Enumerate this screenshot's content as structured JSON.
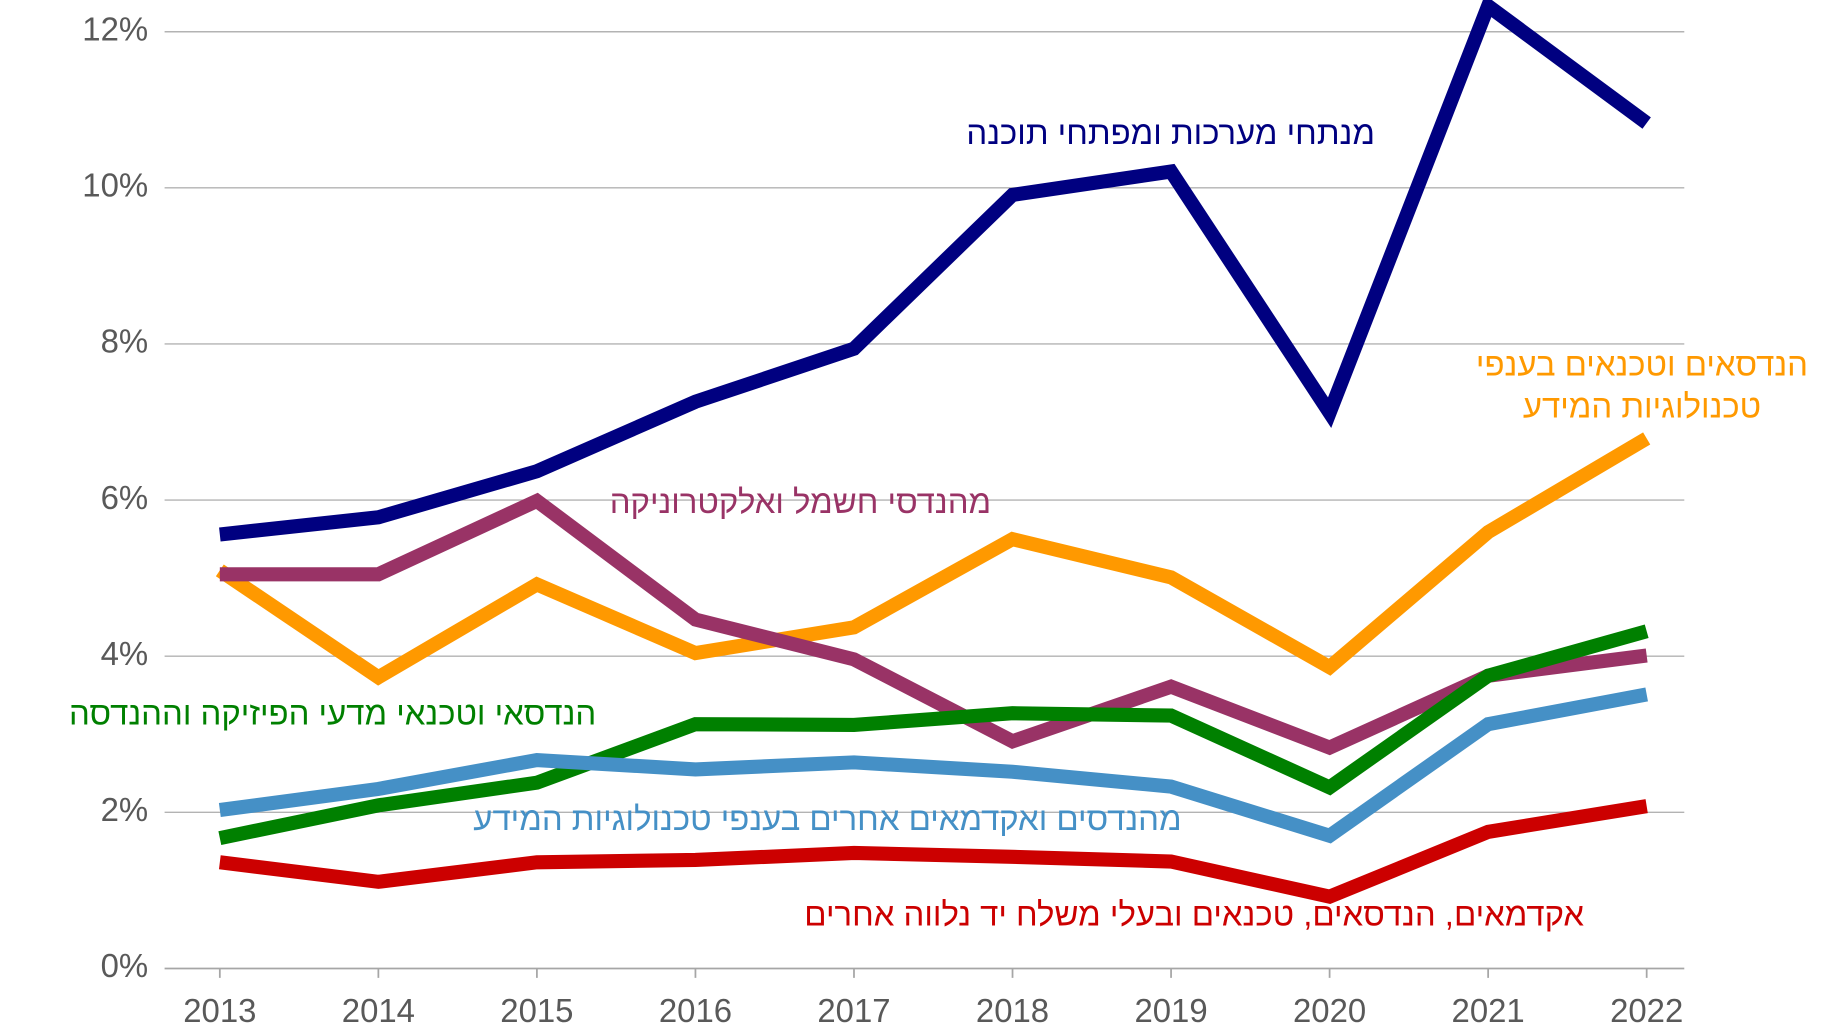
{
  "chart_data": {
    "type": "line",
    "x": [
      2013,
      2014,
      2015,
      2016,
      2017,
      2018,
      2019,
      2020,
      2021,
      2022
    ],
    "xlim": [
      2013,
      2022
    ],
    "ylim": [
      0,
      12
    ],
    "yticks": [
      {
        "value": 0,
        "label": "0%"
      },
      {
        "value": 2,
        "label": "2%"
      },
      {
        "value": 4,
        "label": "4%"
      },
      {
        "value": 6,
        "label": "6%"
      },
      {
        "value": 8,
        "label": "8%"
      },
      {
        "value": 10,
        "label": "10%"
      },
      {
        "value": 12,
        "label": "12%"
      }
    ],
    "grid": true,
    "series": [
      {
        "name": "מנתחי מערכות ומפתחי תוכנה",
        "color": "#000080",
        "values": [
          5.56,
          5.78,
          6.37,
          7.26,
          7.94,
          9.91,
          10.21,
          7.12,
          12.33,
          10.83
        ]
      },
      {
        "name": [
          "הנדסאים וטכנאים בענפי",
          "טכנולוגיות המידע"
        ],
        "color": "#ff9900",
        "values": [
          5.1,
          3.73,
          4.92,
          4.04,
          4.37,
          5.5,
          5.01,
          3.86,
          5.59,
          6.79
        ]
      },
      {
        "name": "מהנדסי חשמל ואלקטרוניקה",
        "color": "#993366",
        "values": [
          5.05,
          5.05,
          5.99,
          4.47,
          3.96,
          2.91,
          3.61,
          2.83,
          3.75,
          4.01
        ]
      },
      {
        "name": "הנדסאי וטכנאי מדעי הפיזיקה וההנדסה",
        "color": "#008000",
        "values": [
          1.67,
          2.09,
          2.38,
          3.13,
          3.12,
          3.27,
          3.24,
          2.32,
          3.75,
          4.32
        ]
      },
      {
        "name": "מהנדסים ואקדמאים אחרים בענפי טכנולוגיות המידע",
        "color": "#4590c6",
        "values": [
          2.03,
          2.3,
          2.67,
          2.55,
          2.64,
          2.52,
          2.33,
          1.7,
          3.13,
          3.51
        ]
      },
      {
        "name": "אקדמאים, הנדסאים, טכנאים ובעלי משלח יד נלווה אחרים",
        "color": "#cc0000",
        "values": [
          1.36,
          1.11,
          1.36,
          1.39,
          1.48,
          1.43,
          1.37,
          0.92,
          1.75,
          2.08
        ]
      }
    ]
  }
}
